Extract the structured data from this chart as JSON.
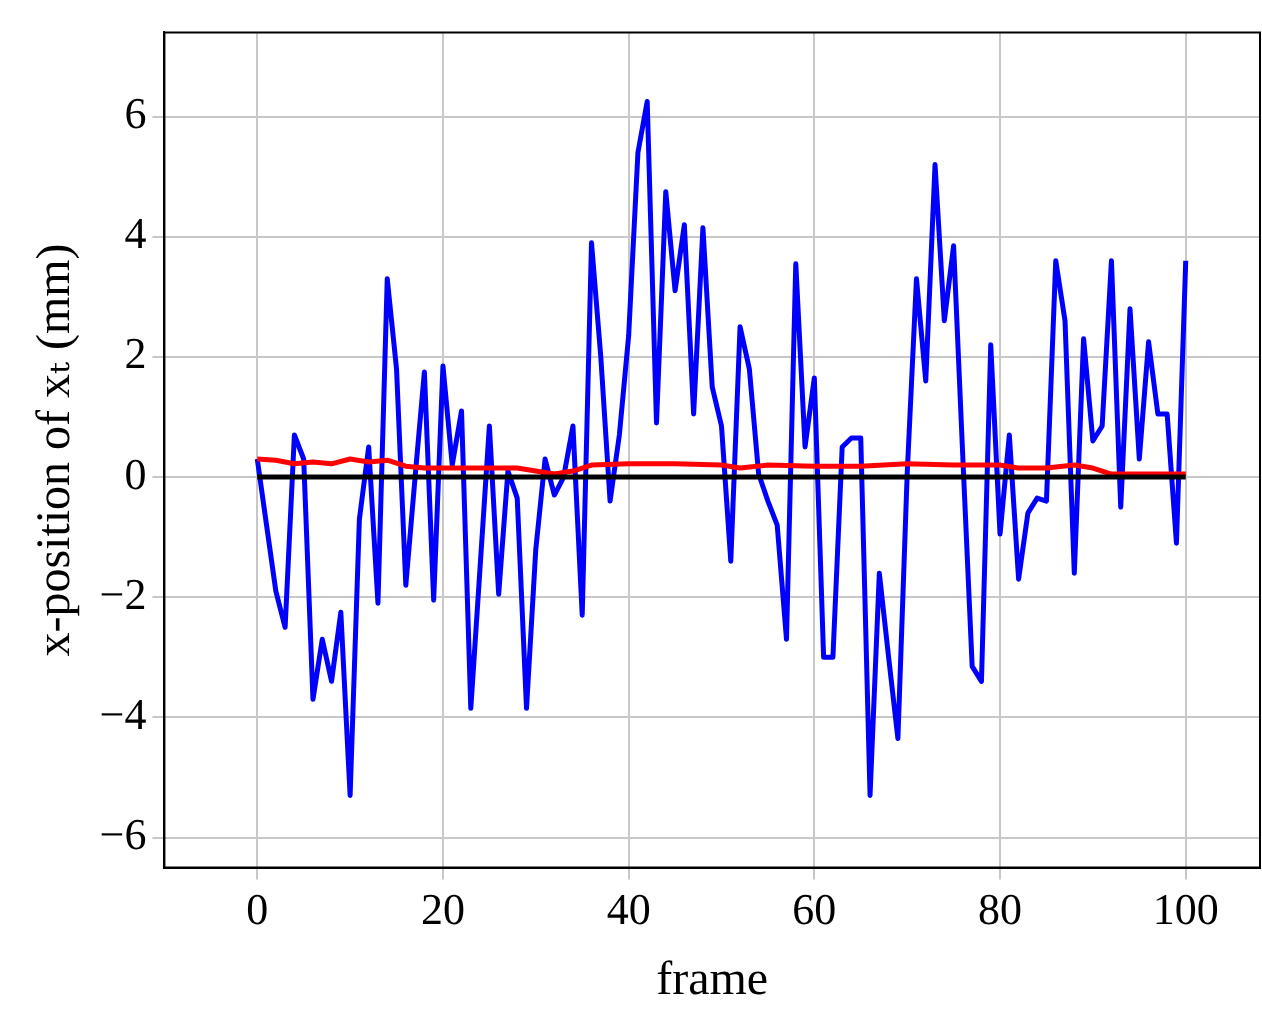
{
  "chart_data": {
    "type": "line",
    "xlabel": "frame",
    "ylabel": "x-position of xₜ (mm)",
    "x": [
      0,
      1,
      2,
      3,
      4,
      5,
      6,
      7,
      8,
      9,
      10,
      11,
      12,
      13,
      14,
      15,
      16,
      17,
      18,
      19,
      20,
      21,
      22,
      23,
      24,
      25,
      26,
      27,
      28,
      29,
      30,
      31,
      32,
      33,
      34,
      35,
      36,
      37,
      38,
      39,
      40,
      41,
      42,
      43,
      44,
      45,
      46,
      47,
      48,
      49,
      50,
      51,
      52,
      53,
      54,
      55,
      56,
      57,
      58,
      59,
      60,
      61,
      62,
      63,
      64,
      65,
      66,
      67,
      68,
      69,
      70,
      71,
      72,
      73,
      74,
      75,
      76,
      77,
      78,
      79,
      80,
      81,
      82,
      83,
      84,
      85,
      86,
      87,
      88,
      89,
      90,
      91,
      92,
      93,
      94,
      95,
      96,
      97,
      98,
      99,
      100
    ],
    "series": [
      {
        "color": "#0000ff",
        "values": [
          0.3,
          -0.8,
          -1.9,
          -2.5,
          0.7,
          0.3,
          -3.7,
          -2.7,
          -3.4,
          -2.25,
          -5.3,
          -0.7,
          0.5,
          -2.1,
          3.3,
          1.8,
          -1.8,
          0.0,
          1.75,
          -2.05,
          1.85,
          0.2,
          1.1,
          -3.85,
          -1.5,
          0.85,
          -1.95,
          0.1,
          -0.35,
          -3.85,
          -1.2,
          0.3,
          -0.3,
          0.0,
          0.85,
          -2.3,
          3.9,
          2.0,
          -0.4,
          0.7,
          2.35,
          5.4,
          6.25,
          0.9,
          4.75,
          3.1,
          4.2,
          1.05,
          4.15,
          1.5,
          0.85,
          -1.4,
          2.5,
          1.8,
          0.05,
          -0.4,
          -0.8,
          -2.7,
          3.55,
          0.5,
          1.65,
          -3.0,
          -3.0,
          0.5,
          0.65,
          0.65,
          -5.3,
          -1.6,
          -3.0,
          -4.35,
          0.05,
          3.3,
          1.6,
          5.2,
          2.6,
          3.85,
          0.3,
          -3.15,
          -3.4,
          2.2,
          -0.95,
          0.7,
          -1.7,
          -0.6,
          -0.35,
          -0.4,
          3.6,
          2.6,
          -1.6,
          2.3,
          0.6,
          0.85,
          3.6,
          -0.5,
          2.8,
          0.3,
          2.25,
          1.05,
          1.05,
          -1.1,
          3.6
        ]
      },
      {
        "color": "#ff0000",
        "x": [
          0,
          2,
          4,
          6,
          8,
          10,
          12,
          14,
          16,
          18,
          20,
          22,
          25,
          28,
          30,
          32,
          34,
          36,
          40,
          45,
          50,
          52,
          55,
          60,
          65,
          70,
          75,
          80,
          82,
          85,
          88,
          90,
          92,
          95,
          100
        ],
        "values": [
          0.3,
          0.28,
          0.22,
          0.25,
          0.22,
          0.3,
          0.25,
          0.28,
          0.18,
          0.15,
          0.15,
          0.15,
          0.15,
          0.15,
          0.1,
          0.05,
          0.1,
          0.2,
          0.22,
          0.22,
          0.2,
          0.15,
          0.2,
          0.18,
          0.18,
          0.22,
          0.2,
          0.2,
          0.15,
          0.15,
          0.2,
          0.15,
          0.05,
          0.05,
          0.05
        ]
      },
      {
        "color": "#000000",
        "x": [
          0,
          100
        ],
        "values": [
          0,
          0
        ]
      }
    ],
    "xlim": [
      -10,
      108
    ],
    "ylim": [
      -6.5,
      7.4
    ],
    "xticks": [
      0,
      20,
      40,
      60,
      80,
      100
    ],
    "yticks": [
      -6,
      -4,
      -2,
      0,
      2,
      4,
      6
    ],
    "grid": true,
    "marker": "none",
    "line_style": "solid"
  }
}
